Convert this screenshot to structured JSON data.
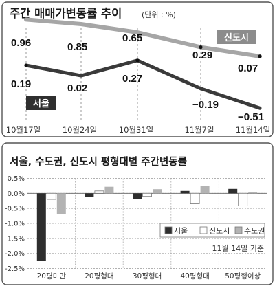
{
  "chart_data": [
    {
      "type": "line",
      "title": "주간 매매가변동률 추이",
      "unit_note": "(단위 : %)",
      "x": [
        "10월17일",
        "10월24일",
        "10월31일",
        "11월7일",
        "11월14일"
      ],
      "series": [
        {
          "name": "신도시",
          "values": [
            0.96,
            0.85,
            0.65,
            0.29,
            0.07
          ],
          "labels": [
            "0.96",
            "0.85",
            "0.65",
            "0.29",
            "0.07"
          ],
          "color": "#a6a6a6"
        },
        {
          "name": "서울",
          "values": [
            0.19,
            0.02,
            0.27,
            -0.19,
            -0.51
          ],
          "labels": [
            "0.19",
            "0.02",
            "0.27",
            "−0.19",
            "−0.51"
          ],
          "color": "#3a3a3a"
        }
      ],
      "grid": "vertical-dashed"
    },
    {
      "type": "bar",
      "title": "서울, 수도권, 신도시 평형대별 주간변동률",
      "note": "11월 14일 기준",
      "categories": [
        "20평미만",
        "20평형대",
        "30평형대",
        "40평형대",
        "50평형이상"
      ],
      "ylim": [
        -2.5,
        0.5
      ],
      "yticks": [
        "0.5%",
        "0.0%",
        "-0.5%",
        "-1.0%",
        "-1.5%",
        "-2.0%",
        "-2.5%"
      ],
      "ytick_values": [
        0.5,
        0.0,
        -0.5,
        -1.0,
        -1.5,
        -2.0,
        -2.5
      ],
      "series": [
        {
          "name": "서울",
          "values": [
            -2.25,
            -0.12,
            -0.18,
            0.08,
            0.15
          ],
          "color": "#2e2e2e"
        },
        {
          "name": "신도시",
          "values": [
            -0.2,
            0.08,
            -0.1,
            -0.35,
            -0.42
          ],
          "color": "#ffffff"
        },
        {
          "name": "수도권",
          "values": [
            -0.7,
            0.22,
            0.14,
            0.26,
            0.05
          ],
          "color": "#b3b3b3"
        }
      ],
      "legend": [
        "서울",
        "신도시",
        "수도권"
      ],
      "legend_position": "bottom-right",
      "grid": "dashed"
    }
  ]
}
